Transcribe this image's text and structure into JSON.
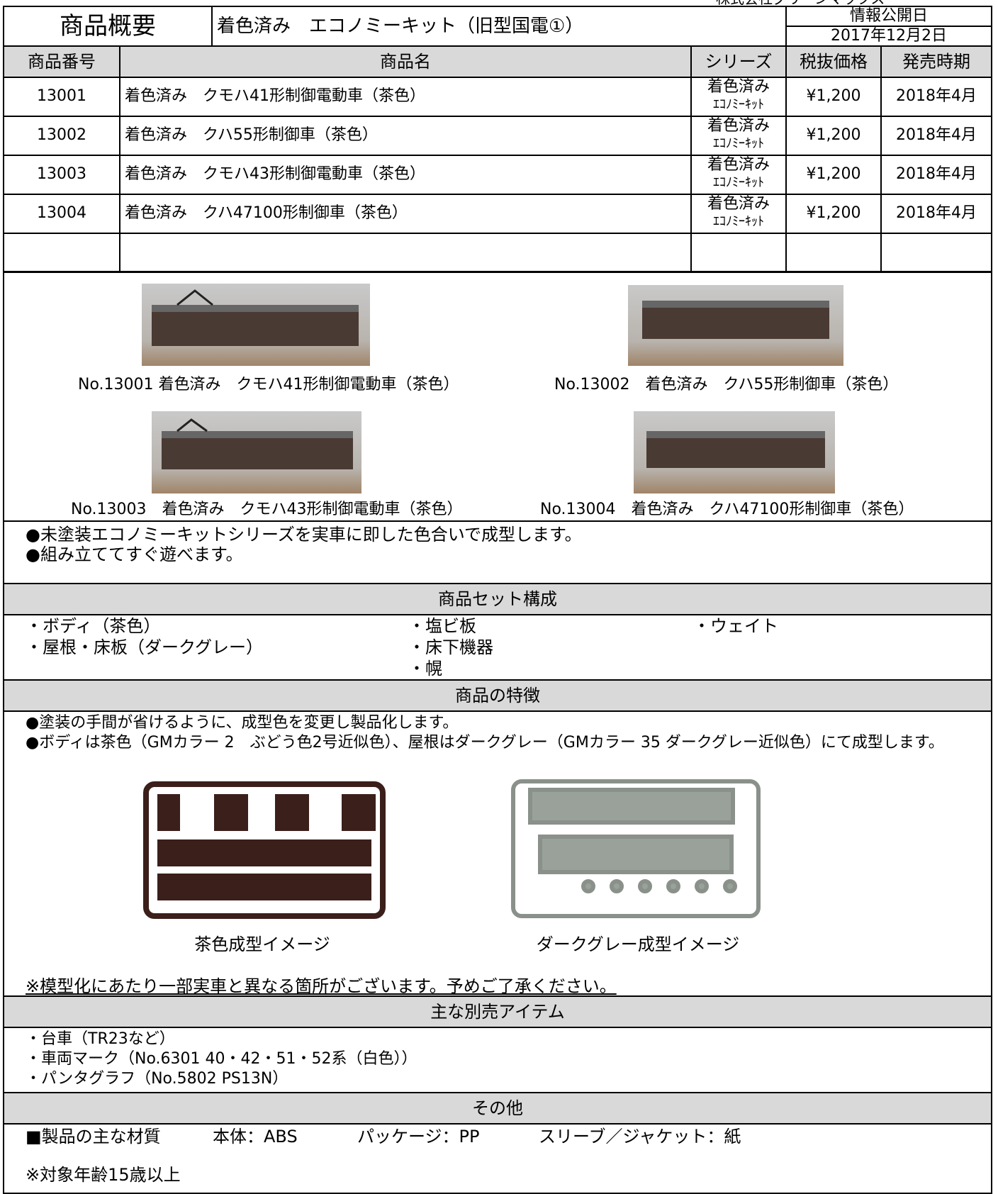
{
  "company": "株式会社グリーンマックス",
  "header": {
    "label": "商品概要",
    "title": "着色済み　エコノミーキット（旧型国電①）",
    "date_label": "情報公開日",
    "date": "2017年12月2日"
  },
  "table": {
    "columns": [
      "商品番号",
      "商品名",
      "シリーズ",
      "税抜価格",
      "発売時期"
    ],
    "rows": [
      [
        "13001",
        "着色済み　クモハ41形制御電動車（茶色）",
        [
          "着色済み",
          "ｴｺﾉﾐｰｷｯﾄ"
        ],
        "¥1,200",
        "2018年4月"
      ],
      [
        "13002",
        "着色済み　クハ55形制御車（茶色）",
        [
          "着色済み",
          "ｴｺﾉﾐｰｷｯﾄ"
        ],
        "¥1,200",
        "2018年4月"
      ],
      [
        "13003",
        "着色済み　クモハ43形制御電動車（茶色）",
        [
          "着色済み",
          "ｴｺﾉﾐｰｷｯﾄ"
        ],
        "¥1,200",
        "2018年4月"
      ],
      [
        "13004",
        "着色済み　クハ47100形制御車（茶色）",
        [
          "着色済み",
          "ｴｺﾉﾐｰｷｯﾄ"
        ],
        "¥1,200",
        "2018年4月"
      ]
    ]
  },
  "photos": [
    "No.13001 着色済み　クモハ41形制御電動車（茶色）",
    "No.13002　着色済み　クハ55形制御車（茶色）",
    "No.13003　着色済み　クモハ43形制御電動車（茶色）",
    "No.13004　着色済み　クハ47100形制御車（茶色）"
  ],
  "notes": [
    "●未塗装エコノミーキットシリーズを実車に即した色合いで成型します。",
    "●組み立ててすぐ遊べます。"
  ],
  "set": {
    "title": "商品セット構成",
    "items": [
      [
        "・ボディ（茶色）",
        "・屋根・床板（ダークグレー）"
      ],
      [
        "・塩ビ板",
        "・床下機器",
        "・幌"
      ],
      [
        "・ウェイト"
      ]
    ]
  },
  "features": {
    "title": "商品の特徴",
    "lines": [
      "●塗装の手間が省けるように、成型色を変更し製品化します。",
      "●ボディは茶色（GMカラー 2　ぶどう色2号近似色）、屋根はダークグレー（GMカラー 35 ダークグレー近似色）にて成型します。"
    ],
    "images": [
      "茶色成型イメージ",
      "ダークグレー成型イメージ"
    ],
    "note": "※模型化にあたり一部実車と異なる箇所がございます。予めご了承ください。"
  },
  "related": {
    "title": "主な別売アイテム",
    "items": [
      "・台車（TR23など）",
      "・車両マーク（No.6301 40・42・51・52系（白色））",
      "・パンタグラフ（No.5802 PS13N）"
    ]
  },
  "other": {
    "title": "その他",
    "material": [
      "■製品の主な材質",
      "本体：ABS",
      "パッケージ：PP",
      "スリーブ／ジャケット：紙"
    ],
    "age": "※対象年齢15歳以上"
  }
}
